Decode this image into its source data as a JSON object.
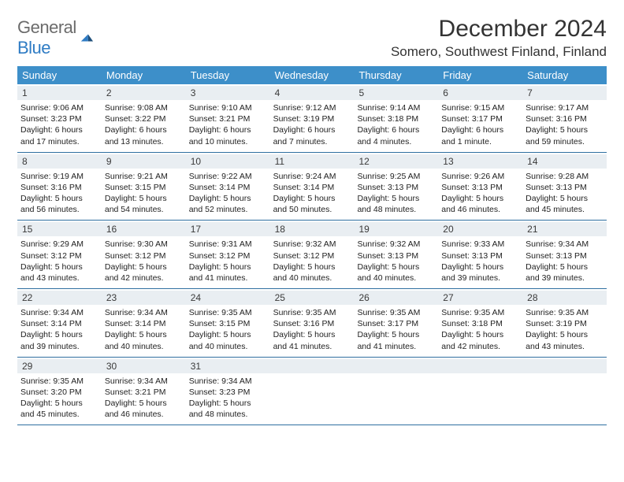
{
  "logo": {
    "general": "General",
    "blue": "Blue"
  },
  "title": "December 2024",
  "location": "Somero, Southwest Finland, Finland",
  "colors": {
    "header_bg": "#3d8fc9",
    "row_divider": "#2f6fa0",
    "daynum_bg": "#e9eef2",
    "logo_gray": "#6b6b6b",
    "logo_blue": "#2f7cc4"
  },
  "days_of_week": [
    "Sunday",
    "Monday",
    "Tuesday",
    "Wednesday",
    "Thursday",
    "Friday",
    "Saturday"
  ],
  "weeks": [
    [
      {
        "n": "1",
        "sr": "Sunrise: 9:06 AM",
        "ss": "Sunset: 3:23 PM",
        "dl": "Daylight: 6 hours and 17 minutes."
      },
      {
        "n": "2",
        "sr": "Sunrise: 9:08 AM",
        "ss": "Sunset: 3:22 PM",
        "dl": "Daylight: 6 hours and 13 minutes."
      },
      {
        "n": "3",
        "sr": "Sunrise: 9:10 AM",
        "ss": "Sunset: 3:21 PM",
        "dl": "Daylight: 6 hours and 10 minutes."
      },
      {
        "n": "4",
        "sr": "Sunrise: 9:12 AM",
        "ss": "Sunset: 3:19 PM",
        "dl": "Daylight: 6 hours and 7 minutes."
      },
      {
        "n": "5",
        "sr": "Sunrise: 9:14 AM",
        "ss": "Sunset: 3:18 PM",
        "dl": "Daylight: 6 hours and 4 minutes."
      },
      {
        "n": "6",
        "sr": "Sunrise: 9:15 AM",
        "ss": "Sunset: 3:17 PM",
        "dl": "Daylight: 6 hours and 1 minute."
      },
      {
        "n": "7",
        "sr": "Sunrise: 9:17 AM",
        "ss": "Sunset: 3:16 PM",
        "dl": "Daylight: 5 hours and 59 minutes."
      }
    ],
    [
      {
        "n": "8",
        "sr": "Sunrise: 9:19 AM",
        "ss": "Sunset: 3:16 PM",
        "dl": "Daylight: 5 hours and 56 minutes."
      },
      {
        "n": "9",
        "sr": "Sunrise: 9:21 AM",
        "ss": "Sunset: 3:15 PM",
        "dl": "Daylight: 5 hours and 54 minutes."
      },
      {
        "n": "10",
        "sr": "Sunrise: 9:22 AM",
        "ss": "Sunset: 3:14 PM",
        "dl": "Daylight: 5 hours and 52 minutes."
      },
      {
        "n": "11",
        "sr": "Sunrise: 9:24 AM",
        "ss": "Sunset: 3:14 PM",
        "dl": "Daylight: 5 hours and 50 minutes."
      },
      {
        "n": "12",
        "sr": "Sunrise: 9:25 AM",
        "ss": "Sunset: 3:13 PM",
        "dl": "Daylight: 5 hours and 48 minutes."
      },
      {
        "n": "13",
        "sr": "Sunrise: 9:26 AM",
        "ss": "Sunset: 3:13 PM",
        "dl": "Daylight: 5 hours and 46 minutes."
      },
      {
        "n": "14",
        "sr": "Sunrise: 9:28 AM",
        "ss": "Sunset: 3:13 PM",
        "dl": "Daylight: 5 hours and 45 minutes."
      }
    ],
    [
      {
        "n": "15",
        "sr": "Sunrise: 9:29 AM",
        "ss": "Sunset: 3:12 PM",
        "dl": "Daylight: 5 hours and 43 minutes."
      },
      {
        "n": "16",
        "sr": "Sunrise: 9:30 AM",
        "ss": "Sunset: 3:12 PM",
        "dl": "Daylight: 5 hours and 42 minutes."
      },
      {
        "n": "17",
        "sr": "Sunrise: 9:31 AM",
        "ss": "Sunset: 3:12 PM",
        "dl": "Daylight: 5 hours and 41 minutes."
      },
      {
        "n": "18",
        "sr": "Sunrise: 9:32 AM",
        "ss": "Sunset: 3:12 PM",
        "dl": "Daylight: 5 hours and 40 minutes."
      },
      {
        "n": "19",
        "sr": "Sunrise: 9:32 AM",
        "ss": "Sunset: 3:13 PM",
        "dl": "Daylight: 5 hours and 40 minutes."
      },
      {
        "n": "20",
        "sr": "Sunrise: 9:33 AM",
        "ss": "Sunset: 3:13 PM",
        "dl": "Daylight: 5 hours and 39 minutes."
      },
      {
        "n": "21",
        "sr": "Sunrise: 9:34 AM",
        "ss": "Sunset: 3:13 PM",
        "dl": "Daylight: 5 hours and 39 minutes."
      }
    ],
    [
      {
        "n": "22",
        "sr": "Sunrise: 9:34 AM",
        "ss": "Sunset: 3:14 PM",
        "dl": "Daylight: 5 hours and 39 minutes."
      },
      {
        "n": "23",
        "sr": "Sunrise: 9:34 AM",
        "ss": "Sunset: 3:14 PM",
        "dl": "Daylight: 5 hours and 40 minutes."
      },
      {
        "n": "24",
        "sr": "Sunrise: 9:35 AM",
        "ss": "Sunset: 3:15 PM",
        "dl": "Daylight: 5 hours and 40 minutes."
      },
      {
        "n": "25",
        "sr": "Sunrise: 9:35 AM",
        "ss": "Sunset: 3:16 PM",
        "dl": "Daylight: 5 hours and 41 minutes."
      },
      {
        "n": "26",
        "sr": "Sunrise: 9:35 AM",
        "ss": "Sunset: 3:17 PM",
        "dl": "Daylight: 5 hours and 41 minutes."
      },
      {
        "n": "27",
        "sr": "Sunrise: 9:35 AM",
        "ss": "Sunset: 3:18 PM",
        "dl": "Daylight: 5 hours and 42 minutes."
      },
      {
        "n": "28",
        "sr": "Sunrise: 9:35 AM",
        "ss": "Sunset: 3:19 PM",
        "dl": "Daylight: 5 hours and 43 minutes."
      }
    ],
    [
      {
        "n": "29",
        "sr": "Sunrise: 9:35 AM",
        "ss": "Sunset: 3:20 PM",
        "dl": "Daylight: 5 hours and 45 minutes."
      },
      {
        "n": "30",
        "sr": "Sunrise: 9:34 AM",
        "ss": "Sunset: 3:21 PM",
        "dl": "Daylight: 5 hours and 46 minutes."
      },
      {
        "n": "31",
        "sr": "Sunrise: 9:34 AM",
        "ss": "Sunset: 3:23 PM",
        "dl": "Daylight: 5 hours and 48 minutes."
      },
      {
        "n": "",
        "sr": "",
        "ss": "",
        "dl": ""
      },
      {
        "n": "",
        "sr": "",
        "ss": "",
        "dl": ""
      },
      {
        "n": "",
        "sr": "",
        "ss": "",
        "dl": ""
      },
      {
        "n": "",
        "sr": "",
        "ss": "",
        "dl": ""
      }
    ]
  ]
}
